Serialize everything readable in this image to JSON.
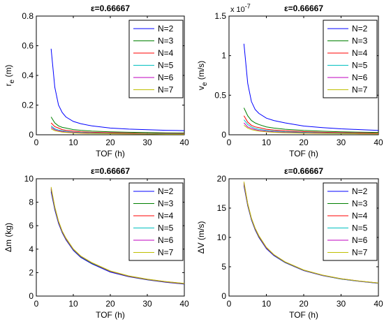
{
  "chart_data": [
    {
      "type": "line",
      "title": "ε=0.66667",
      "xlabel": "TOF (h)",
      "ylabel": "r_e (m)",
      "xlim": [
        0,
        40
      ],
      "ylim": [
        0,
        0.8
      ],
      "xticks": [
        "0",
        "10",
        "20",
        "30",
        "40"
      ],
      "yticks": [
        "0",
        "0.2",
        "0.4",
        "0.6",
        "0.8"
      ],
      "exponent_label": "",
      "legend_position": "top-right",
      "x": [
        4,
        5,
        6,
        7,
        8,
        10,
        12,
        15,
        20,
        25,
        30,
        35,
        40
      ],
      "series": [
        {
          "name": "N=2",
          "color": "#0000ff",
          "values": [
            0.58,
            0.32,
            0.2,
            0.15,
            0.12,
            0.09,
            0.075,
            0.06,
            0.045,
            0.038,
            0.034,
            0.03,
            0.028
          ]
        },
        {
          "name": "N=3",
          "color": "#008000",
          "values": [
            0.12,
            0.08,
            0.06,
            0.05,
            0.045,
            0.035,
            0.03,
            0.025,
            0.02,
            0.017,
            0.015,
            0.013,
            0.012
          ]
        },
        {
          "name": "N=4",
          "color": "#ff0000",
          "values": [
            0.08,
            0.055,
            0.045,
            0.035,
            0.03,
            0.025,
            0.02,
            0.017,
            0.014,
            0.012,
            0.01,
            0.009,
            0.008
          ]
        },
        {
          "name": "N=5",
          "color": "#00bfbf",
          "values": [
            0.06,
            0.04,
            0.032,
            0.027,
            0.023,
            0.018,
            0.015,
            0.013,
            0.01,
            0.009,
            0.008,
            0.007,
            0.006
          ]
        },
        {
          "name": "N=6",
          "color": "#bf00bf",
          "values": [
            0.05,
            0.034,
            0.027,
            0.022,
            0.019,
            0.015,
            0.012,
            0.01,
            0.008,
            0.007,
            0.006,
            0.005,
            0.005
          ]
        },
        {
          "name": "N=7",
          "color": "#bfbf00",
          "values": [
            0.04,
            0.028,
            0.022,
            0.018,
            0.016,
            0.012,
            0.01,
            0.008,
            0.007,
            0.006,
            0.005,
            0.004,
            0.004
          ]
        }
      ]
    },
    {
      "type": "line",
      "title": "ε=0.66667",
      "xlabel": "TOF (h)",
      "ylabel": "v_e (m/s)",
      "xlim": [
        0,
        40
      ],
      "ylim": [
        0,
        1.5
      ],
      "xticks": [
        "0",
        "10",
        "20",
        "30",
        "40"
      ],
      "yticks": [
        "0",
        "0.5",
        "1",
        "1.5"
      ],
      "exponent_label": "x 10",
      "exponent_power": "-7",
      "legend_position": "top-right",
      "x": [
        4,
        5,
        6,
        7,
        8,
        10,
        12,
        15,
        20,
        25,
        30,
        35,
        40
      ],
      "series": [
        {
          "name": "N=2",
          "color": "#0000ff",
          "values": [
            1.15,
            0.65,
            0.42,
            0.32,
            0.27,
            0.21,
            0.18,
            0.15,
            0.11,
            0.09,
            0.075,
            0.065,
            0.055
          ]
        },
        {
          "name": "N=3",
          "color": "#008000",
          "values": [
            0.34,
            0.24,
            0.18,
            0.15,
            0.13,
            0.1,
            0.085,
            0.07,
            0.055,
            0.045,
            0.038,
            0.033,
            0.03
          ]
        },
        {
          "name": "N=4",
          "color": "#ff0000",
          "values": [
            0.24,
            0.16,
            0.12,
            0.1,
            0.09,
            0.07,
            0.06,
            0.05,
            0.04,
            0.032,
            0.027,
            0.024,
            0.021
          ]
        },
        {
          "name": "N=5",
          "color": "#00bfbf",
          "values": [
            0.19,
            0.13,
            0.1,
            0.08,
            0.07,
            0.055,
            0.047,
            0.039,
            0.031,
            0.025,
            0.021,
            0.018,
            0.016
          ]
        },
        {
          "name": "N=6",
          "color": "#bf00bf",
          "values": [
            0.15,
            0.1,
            0.08,
            0.065,
            0.056,
            0.045,
            0.038,
            0.031,
            0.025,
            0.02,
            0.017,
            0.015,
            0.013
          ]
        },
        {
          "name": "N=7",
          "color": "#bfbf00",
          "values": [
            0.12,
            0.085,
            0.065,
            0.055,
            0.047,
            0.037,
            0.031,
            0.026,
            0.02,
            0.017,
            0.014,
            0.012,
            0.011
          ]
        }
      ]
    },
    {
      "type": "line",
      "title": "ε=0.66667",
      "xlabel": "TOF (h)",
      "ylabel": "Δm (kg)",
      "xlim": [
        0,
        40
      ],
      "ylim": [
        0,
        10
      ],
      "xticks": [
        "0",
        "10",
        "20",
        "30",
        "40"
      ],
      "yticks": [
        "0",
        "2",
        "4",
        "6",
        "8",
        "10"
      ],
      "exponent_label": "",
      "legend_position": "top-right",
      "x": [
        4,
        5,
        6,
        7,
        8,
        10,
        12,
        15,
        20,
        25,
        30,
        35,
        40
      ],
      "series": [
        {
          "name": "N=2",
          "color": "#0000ff",
          "values": [
            8.9,
            7.35,
            6.2,
            5.4,
            4.8,
            3.9,
            3.3,
            2.75,
            2.05,
            1.65,
            1.38,
            1.18,
            1.02
          ]
        },
        {
          "name": "N=3",
          "color": "#008000",
          "values": [
            9.05,
            7.45,
            6.3,
            5.45,
            4.85,
            3.95,
            3.35,
            2.8,
            2.1,
            1.68,
            1.4,
            1.2,
            1.04
          ]
        },
        {
          "name": "N=4",
          "color": "#ff0000",
          "values": [
            9.1,
            7.5,
            6.32,
            5.48,
            4.87,
            3.97,
            3.37,
            2.82,
            2.11,
            1.69,
            1.41,
            1.21,
            1.05
          ]
        },
        {
          "name": "N=5",
          "color": "#00bfbf",
          "values": [
            9.15,
            7.53,
            6.35,
            5.5,
            4.9,
            3.98,
            3.38,
            2.83,
            2.12,
            1.7,
            1.42,
            1.22,
            1.06
          ]
        },
        {
          "name": "N=6",
          "color": "#bf00bf",
          "values": [
            9.2,
            7.56,
            6.37,
            5.52,
            4.92,
            4.0,
            3.4,
            2.84,
            2.13,
            1.71,
            1.43,
            1.23,
            1.07
          ]
        },
        {
          "name": "N=7",
          "color": "#bfbf00",
          "values": [
            9.3,
            7.6,
            6.4,
            5.55,
            4.95,
            4.02,
            3.42,
            2.86,
            2.14,
            1.72,
            1.44,
            1.24,
            1.08
          ]
        }
      ]
    },
    {
      "type": "line",
      "title": "ε=0.66667",
      "xlabel": "TOF (h)",
      "ylabel": "ΔV (m/s)",
      "xlim": [
        0,
        40
      ],
      "ylim": [
        0,
        20
      ],
      "xticks": [
        "0",
        "10",
        "20",
        "30",
        "40"
      ],
      "yticks": [
        "0",
        "5",
        "10",
        "15",
        "20"
      ],
      "exponent_label": "",
      "legend_position": "top-right",
      "x": [
        4,
        5,
        6,
        7,
        8,
        10,
        12,
        15,
        20,
        25,
        30,
        35,
        40
      ],
      "series": [
        {
          "name": "N=2",
          "color": "#0000ff",
          "values": [
            18.8,
            15.4,
            13.0,
            11.3,
            10.0,
            8.1,
            6.9,
            5.7,
            4.35,
            3.5,
            2.9,
            2.5,
            2.18
          ]
        },
        {
          "name": "N=3",
          "color": "#008000",
          "values": [
            19.0,
            15.5,
            13.1,
            11.4,
            10.1,
            8.2,
            7.0,
            5.75,
            4.38,
            3.52,
            2.92,
            2.52,
            2.2
          ]
        },
        {
          "name": "N=4",
          "color": "#ff0000",
          "values": [
            19.1,
            15.6,
            13.15,
            11.45,
            10.15,
            8.23,
            7.02,
            5.78,
            4.4,
            3.54,
            2.94,
            2.53,
            2.21
          ]
        },
        {
          "name": "N=5",
          "color": "#00bfbf",
          "values": [
            19.2,
            15.65,
            13.2,
            11.5,
            10.2,
            8.26,
            7.04,
            5.8,
            4.42,
            3.55,
            2.95,
            2.54,
            2.22
          ]
        },
        {
          "name": "N=6",
          "color": "#bf00bf",
          "values": [
            19.3,
            15.7,
            13.25,
            11.55,
            10.25,
            8.29,
            7.06,
            5.82,
            4.43,
            3.56,
            2.96,
            2.55,
            2.23
          ]
        },
        {
          "name": "N=7",
          "color": "#bfbf00",
          "values": [
            19.5,
            15.8,
            13.3,
            11.6,
            10.3,
            8.32,
            7.08,
            5.84,
            4.45,
            3.58,
            2.97,
            2.56,
            2.24
          ]
        }
      ]
    }
  ]
}
